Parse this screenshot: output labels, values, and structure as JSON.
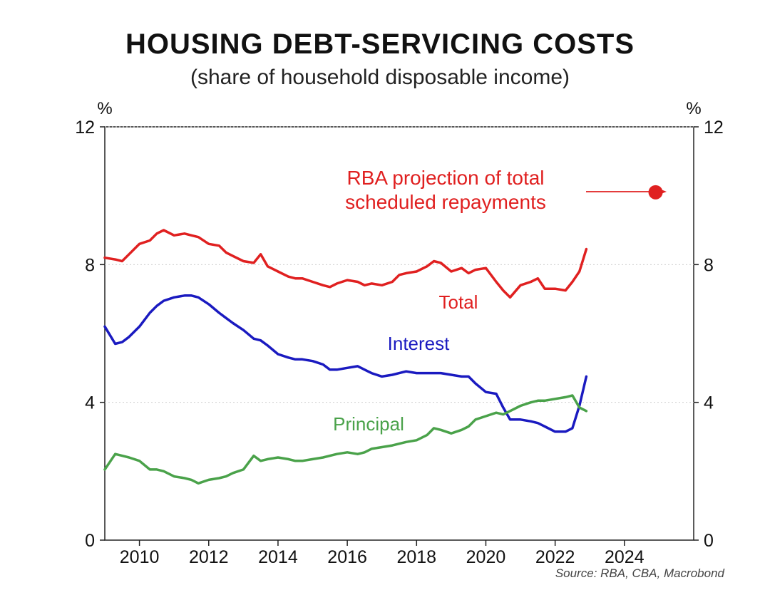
{
  "chart_data": {
    "type": "line",
    "title": "HOUSING DEBT-SERVICING COSTS",
    "subtitle": "(share of household disposable income)",
    "ylabel_left": "%",
    "ylabel_right": "%",
    "xlim": [
      2009,
      2026
    ],
    "ylim": [
      0,
      12
    ],
    "x_ticks": [
      2010,
      2012,
      2014,
      2016,
      2018,
      2020,
      2022,
      2024
    ],
    "y_ticks": [
      0,
      4,
      8,
      12
    ],
    "grid": true,
    "series": [
      {
        "name": "Total",
        "color": "#e02020",
        "x": [
          2009.0,
          2009.3,
          2009.5,
          2009.7,
          2010.0,
          2010.3,
          2010.5,
          2010.7,
          2011.0,
          2011.3,
          2011.5,
          2011.7,
          2012.0,
          2012.3,
          2012.5,
          2012.7,
          2013.0,
          2013.3,
          2013.5,
          2013.7,
          2014.0,
          2014.3,
          2014.5,
          2014.7,
          2015.0,
          2015.3,
          2015.5,
          2015.7,
          2016.0,
          2016.3,
          2016.5,
          2016.7,
          2017.0,
          2017.3,
          2017.5,
          2017.7,
          2018.0,
          2018.3,
          2018.5,
          2018.7,
          2019.0,
          2019.3,
          2019.5,
          2019.7,
          2020.0,
          2020.3,
          2020.5,
          2020.7,
          2021.0,
          2021.3,
          2021.5,
          2021.7,
          2022.0,
          2022.3,
          2022.5,
          2022.7,
          2022.9
        ],
        "values": [
          8.2,
          8.15,
          8.1,
          8.3,
          8.6,
          8.7,
          8.9,
          9.0,
          8.85,
          8.9,
          8.85,
          8.8,
          8.6,
          8.55,
          8.35,
          8.25,
          8.1,
          8.05,
          8.3,
          7.95,
          7.8,
          7.65,
          7.6,
          7.6,
          7.5,
          7.4,
          7.35,
          7.45,
          7.55,
          7.5,
          7.4,
          7.45,
          7.4,
          7.5,
          7.7,
          7.75,
          7.8,
          7.95,
          8.1,
          8.05,
          7.8,
          7.9,
          7.75,
          7.85,
          7.9,
          7.5,
          7.25,
          7.05,
          7.4,
          7.5,
          7.6,
          7.3,
          7.3,
          7.25,
          7.5,
          7.8,
          8.45
        ]
      },
      {
        "name": "Interest",
        "color": "#1a1ac0",
        "x": [
          2009.0,
          2009.3,
          2009.5,
          2009.7,
          2010.0,
          2010.3,
          2010.5,
          2010.7,
          2011.0,
          2011.3,
          2011.5,
          2011.7,
          2012.0,
          2012.3,
          2012.5,
          2012.7,
          2013.0,
          2013.3,
          2013.5,
          2013.7,
          2014.0,
          2014.3,
          2014.5,
          2014.7,
          2015.0,
          2015.3,
          2015.5,
          2015.7,
          2016.0,
          2016.3,
          2016.5,
          2016.7,
          2017.0,
          2017.3,
          2017.5,
          2017.7,
          2018.0,
          2018.3,
          2018.5,
          2018.7,
          2019.0,
          2019.3,
          2019.5,
          2019.7,
          2020.0,
          2020.3,
          2020.5,
          2020.7,
          2021.0,
          2021.3,
          2021.5,
          2021.7,
          2022.0,
          2022.3,
          2022.5,
          2022.7,
          2022.9
        ],
        "values": [
          6.2,
          5.7,
          5.75,
          5.9,
          6.2,
          6.6,
          6.8,
          6.95,
          7.05,
          7.1,
          7.1,
          7.05,
          6.85,
          6.6,
          6.45,
          6.3,
          6.1,
          5.85,
          5.8,
          5.65,
          5.4,
          5.3,
          5.25,
          5.25,
          5.2,
          5.1,
          4.95,
          4.95,
          5.0,
          5.05,
          4.95,
          4.85,
          4.75,
          4.8,
          4.85,
          4.9,
          4.85,
          4.85,
          4.85,
          4.85,
          4.8,
          4.75,
          4.75,
          4.55,
          4.3,
          4.25,
          3.85,
          3.5,
          3.5,
          3.45,
          3.4,
          3.3,
          3.15,
          3.15,
          3.25,
          3.9,
          4.75
        ]
      },
      {
        "name": "Principal",
        "color": "#4aa24a",
        "x": [
          2009.0,
          2009.3,
          2009.5,
          2009.7,
          2010.0,
          2010.3,
          2010.5,
          2010.7,
          2011.0,
          2011.3,
          2011.5,
          2011.7,
          2012.0,
          2012.3,
          2012.5,
          2012.7,
          2013.0,
          2013.3,
          2013.5,
          2013.7,
          2014.0,
          2014.3,
          2014.5,
          2014.7,
          2015.0,
          2015.3,
          2015.5,
          2015.7,
          2016.0,
          2016.3,
          2016.5,
          2016.7,
          2017.0,
          2017.3,
          2017.5,
          2017.7,
          2018.0,
          2018.3,
          2018.5,
          2018.7,
          2019.0,
          2019.3,
          2019.5,
          2019.7,
          2020.0,
          2020.3,
          2020.5,
          2020.7,
          2021.0,
          2021.3,
          2021.5,
          2021.7,
          2022.0,
          2022.3,
          2022.5,
          2022.7,
          2022.9
        ],
        "values": [
          2.05,
          2.5,
          2.45,
          2.4,
          2.3,
          2.05,
          2.05,
          2.0,
          1.85,
          1.8,
          1.75,
          1.65,
          1.75,
          1.8,
          1.85,
          1.95,
          2.05,
          2.45,
          2.3,
          2.35,
          2.4,
          2.35,
          2.3,
          2.3,
          2.35,
          2.4,
          2.45,
          2.5,
          2.55,
          2.5,
          2.55,
          2.65,
          2.7,
          2.75,
          2.8,
          2.85,
          2.9,
          3.05,
          3.25,
          3.2,
          3.1,
          3.2,
          3.3,
          3.5,
          3.6,
          3.7,
          3.65,
          3.75,
          3.9,
          4.0,
          4.05,
          4.05,
          4.1,
          4.15,
          4.2,
          3.85,
          3.75
        ]
      }
    ],
    "projection": {
      "label_line1": "RBA projection of total",
      "label_line2": "scheduled repayments",
      "x": 2024.9,
      "value": 10.1,
      "color": "#e02020"
    },
    "annotations": {
      "total": "Total",
      "interest": "Interest",
      "principal": "Principal"
    },
    "source": "Source: RBA, CBA, Macrobond"
  }
}
